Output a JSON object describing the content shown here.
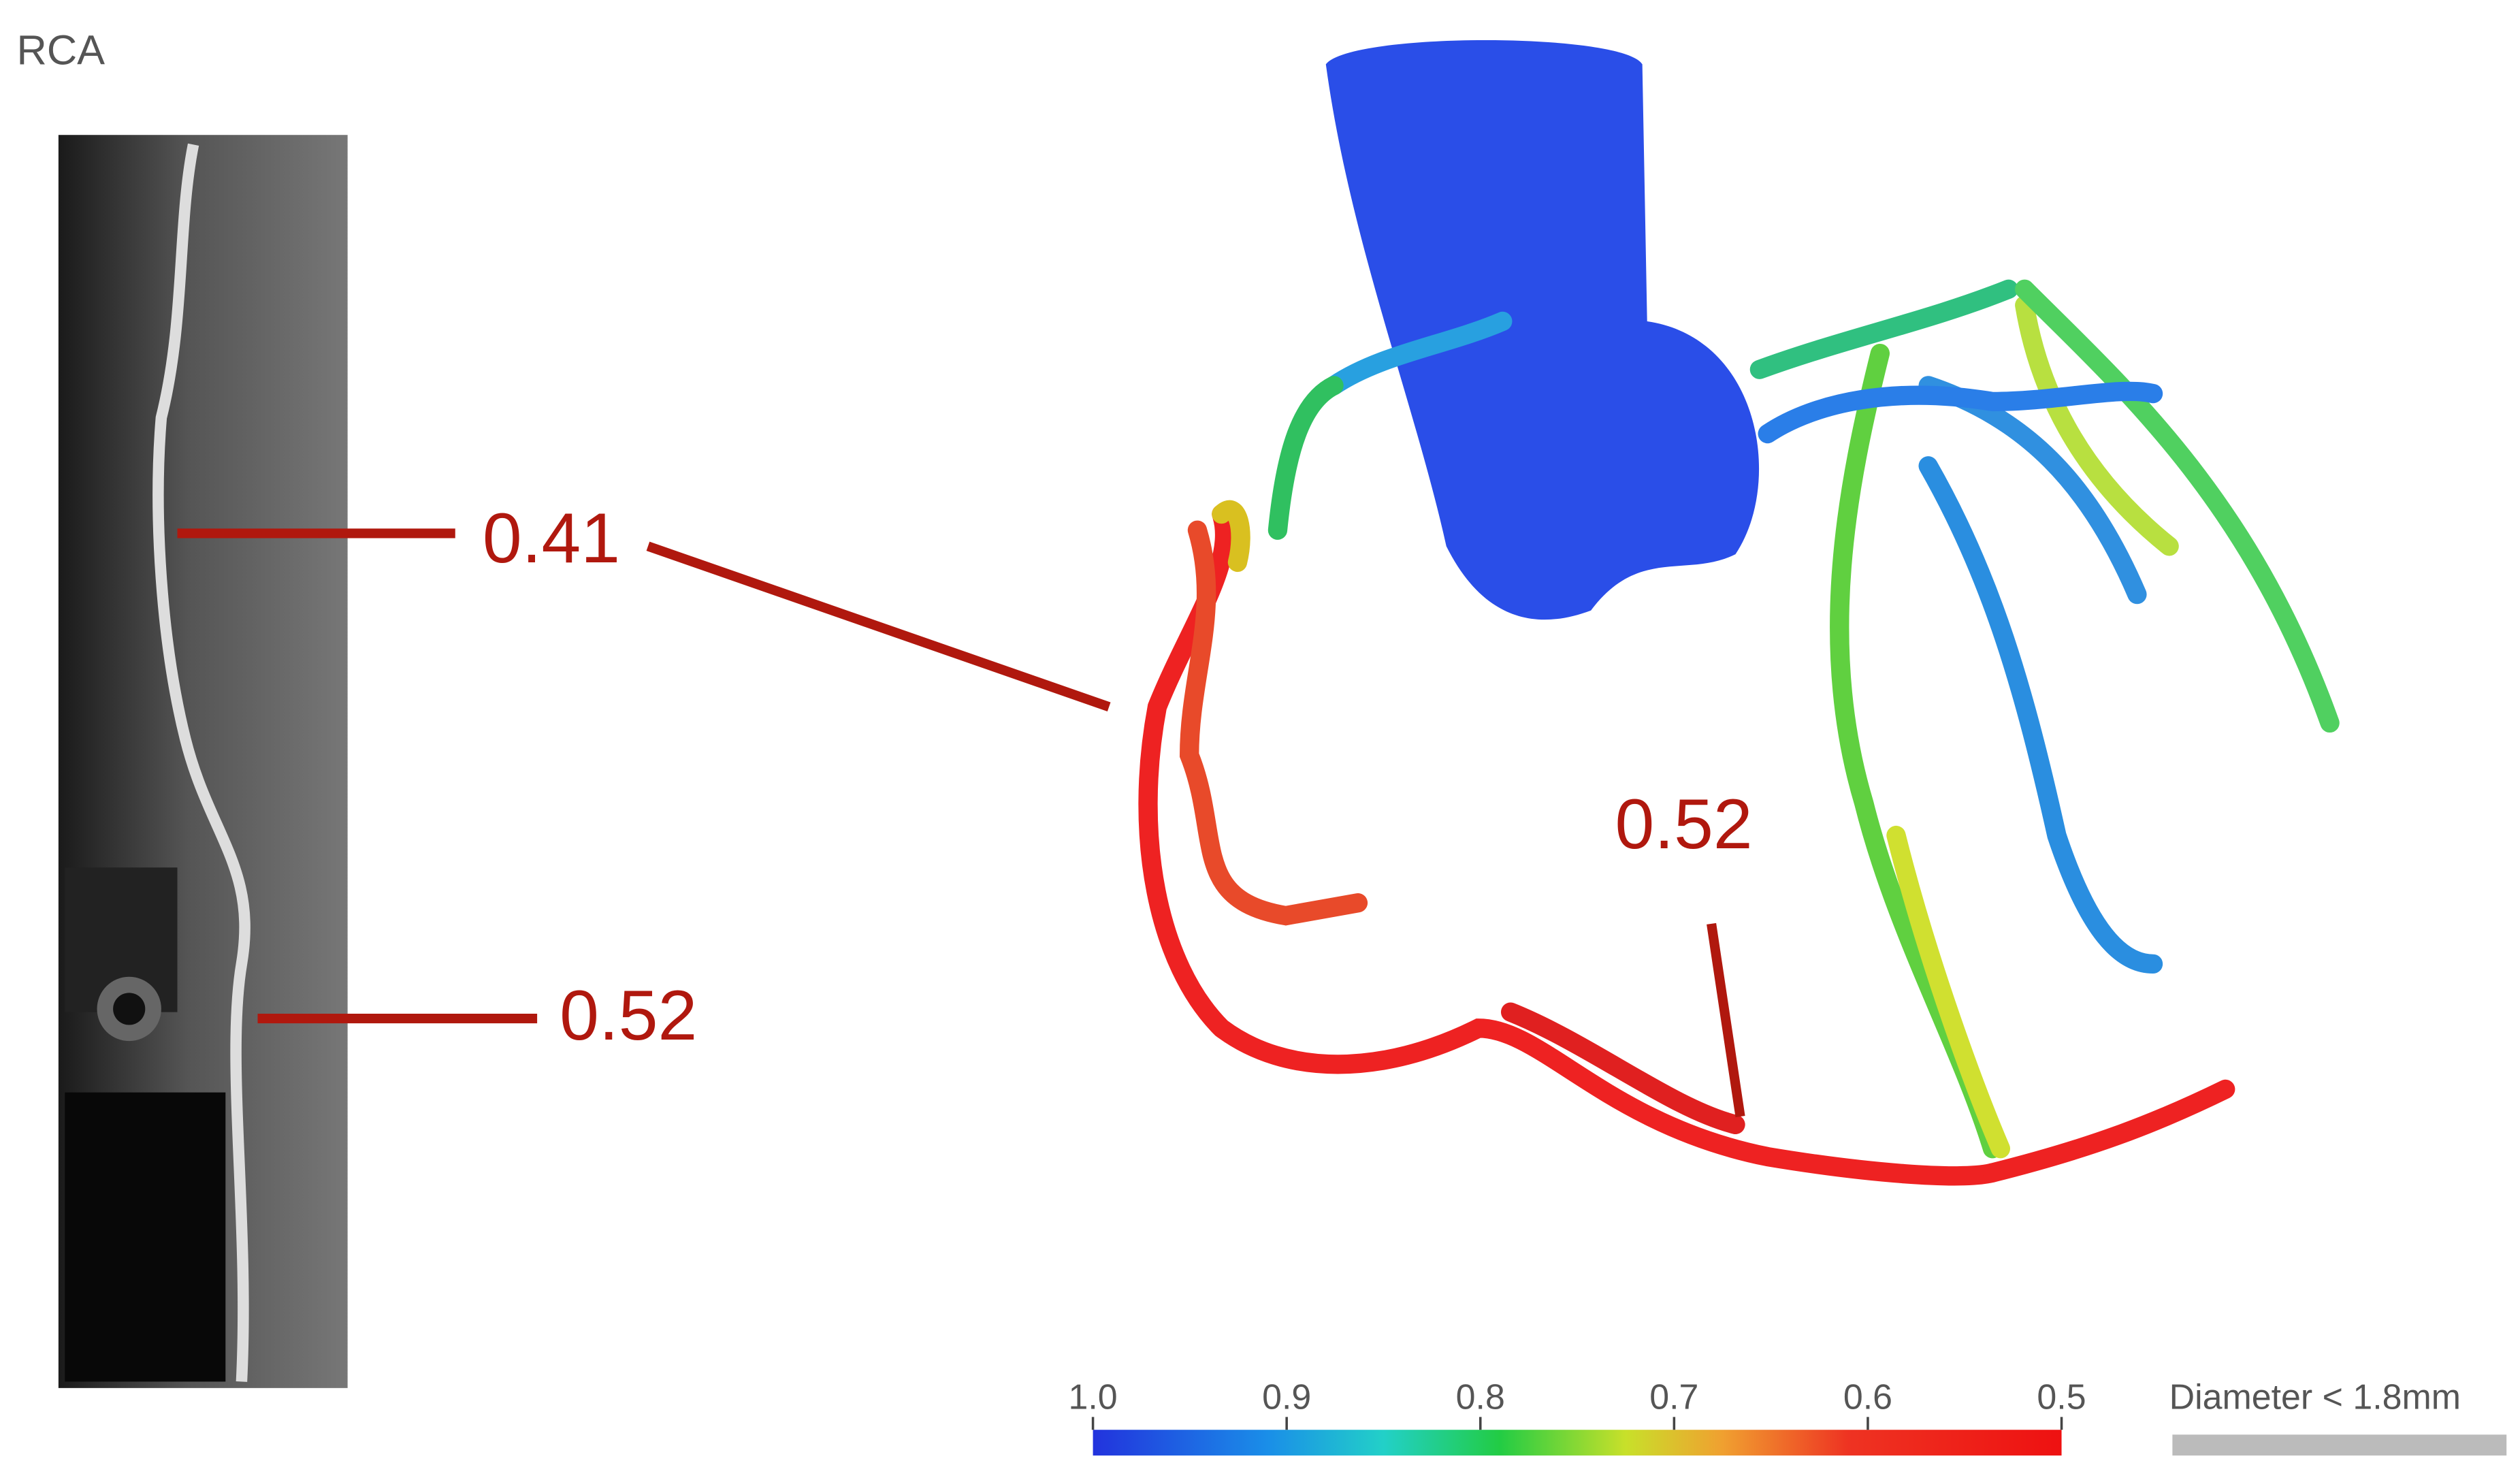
{
  "panel_title": "RCA",
  "annotations": [
    {
      "text": "0.41"
    },
    {
      "text": "0.52"
    },
    {
      "text": "0.52"
    }
  ],
  "colorbar": {
    "ticks": [
      "1.0",
      "0.9",
      "0.8",
      "0.7",
      "0.6",
      "0.5"
    ],
    "note": "Diameter < 1.8mm"
  }
}
